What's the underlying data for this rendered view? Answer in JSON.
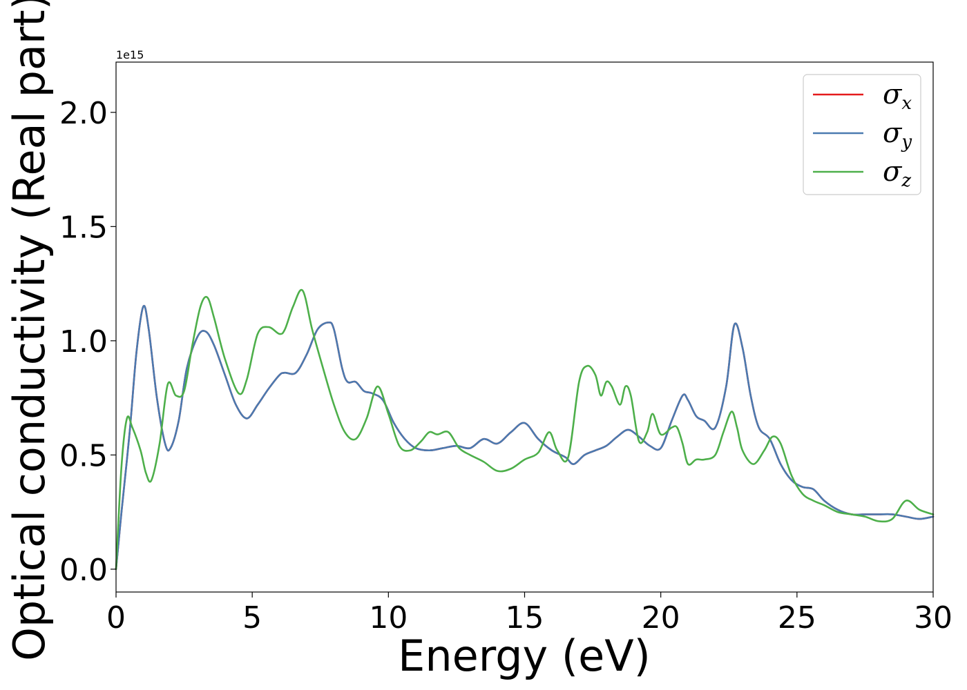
{
  "chart_data": {
    "type": "line",
    "title": "",
    "xlabel": "Energy (eV)",
    "ylabel": "Optical conductivity (Real part)",
    "y_offset_label": "1e15",
    "xlim": [
      0,
      30
    ],
    "ylim": [
      -0.1,
      2.22
    ],
    "xticks": [
      0,
      5,
      10,
      15,
      20,
      25,
      30
    ],
    "xtick_labels": [
      "0",
      "5",
      "10",
      "15",
      "20",
      "25",
      "30"
    ],
    "yticks": [
      0.0,
      0.5,
      1.0,
      1.5,
      2.0
    ],
    "ytick_labels": [
      "0.0",
      "0.5",
      "1.0",
      "1.5",
      "2.0"
    ],
    "grid": false,
    "legend_position": "top-right",
    "series": [
      {
        "name": "σx",
        "symbol": "σ",
        "subscript": "x",
        "color": "#e41a1c",
        "x": [
          0,
          0.2,
          0.5,
          0.75,
          1.0,
          1.2,
          1.5,
          1.8,
          2.0,
          2.3,
          2.6,
          3.0,
          3.3,
          3.6,
          4.0,
          4.4,
          4.8,
          5.2,
          5.6,
          6.0,
          6.2,
          6.6,
          7.0,
          7.4,
          7.8,
          8.0,
          8.3,
          8.5,
          8.8,
          9.1,
          9.4,
          9.8,
          10.2,
          10.6,
          11.0,
          11.5,
          12.0,
          12.5,
          13.0,
          13.5,
          14.0,
          14.5,
          15.0,
          15.5,
          16.0,
          16.5,
          16.8,
          17.2,
          17.6,
          18.0,
          18.4,
          18.8,
          19.2,
          19.6,
          20.0,
          20.4,
          20.8,
          21.0,
          21.3,
          21.6,
          22.0,
          22.4,
          22.7,
          23.0,
          23.3,
          23.6,
          24.0,
          24.4,
          24.8,
          25.2,
          25.6,
          26.0,
          26.5,
          27.0,
          27.5,
          28.0,
          28.5,
          29.0,
          29.5,
          30.0
        ],
        "y": [
          0.0,
          0.25,
          0.6,
          0.95,
          1.15,
          1.05,
          0.75,
          0.55,
          0.53,
          0.65,
          0.88,
          1.02,
          1.04,
          0.98,
          0.85,
          0.72,
          0.66,
          0.72,
          0.79,
          0.85,
          0.86,
          0.86,
          0.94,
          1.05,
          1.08,
          1.05,
          0.88,
          0.82,
          0.82,
          0.78,
          0.77,
          0.74,
          0.64,
          0.57,
          0.53,
          0.52,
          0.53,
          0.54,
          0.53,
          0.57,
          0.55,
          0.6,
          0.64,
          0.57,
          0.52,
          0.49,
          0.46,
          0.5,
          0.52,
          0.54,
          0.58,
          0.61,
          0.58,
          0.54,
          0.53,
          0.65,
          0.76,
          0.74,
          0.67,
          0.65,
          0.62,
          0.8,
          1.07,
          0.97,
          0.76,
          0.62,
          0.57,
          0.46,
          0.39,
          0.36,
          0.35,
          0.3,
          0.26,
          0.24,
          0.24,
          0.24,
          0.24,
          0.23,
          0.22,
          0.23
        ]
      },
      {
        "name": "σy",
        "symbol": "σ",
        "subscript": "y",
        "color": "#4a7ab0",
        "x": [
          0,
          0.2,
          0.5,
          0.75,
          1.0,
          1.2,
          1.5,
          1.8,
          2.0,
          2.3,
          2.6,
          3.0,
          3.3,
          3.6,
          4.0,
          4.4,
          4.8,
          5.2,
          5.6,
          6.0,
          6.2,
          6.6,
          7.0,
          7.4,
          7.8,
          8.0,
          8.3,
          8.5,
          8.8,
          9.1,
          9.4,
          9.8,
          10.2,
          10.6,
          11.0,
          11.5,
          12.0,
          12.5,
          13.0,
          13.5,
          14.0,
          14.5,
          15.0,
          15.5,
          16.0,
          16.5,
          16.8,
          17.2,
          17.6,
          18.0,
          18.4,
          18.8,
          19.2,
          19.6,
          20.0,
          20.4,
          20.8,
          21.0,
          21.3,
          21.6,
          22.0,
          22.4,
          22.7,
          23.0,
          23.3,
          23.6,
          24.0,
          24.4,
          24.8,
          25.2,
          25.6,
          26.0,
          26.5,
          27.0,
          27.5,
          28.0,
          28.5,
          29.0,
          29.5,
          30.0
        ],
        "y": [
          0.0,
          0.25,
          0.6,
          0.95,
          1.15,
          1.05,
          0.75,
          0.55,
          0.53,
          0.65,
          0.88,
          1.02,
          1.04,
          0.98,
          0.85,
          0.72,
          0.66,
          0.72,
          0.79,
          0.85,
          0.86,
          0.86,
          0.94,
          1.05,
          1.08,
          1.05,
          0.88,
          0.82,
          0.82,
          0.78,
          0.77,
          0.74,
          0.64,
          0.57,
          0.53,
          0.52,
          0.53,
          0.54,
          0.53,
          0.57,
          0.55,
          0.6,
          0.64,
          0.57,
          0.52,
          0.49,
          0.46,
          0.5,
          0.52,
          0.54,
          0.58,
          0.61,
          0.58,
          0.54,
          0.53,
          0.65,
          0.76,
          0.74,
          0.67,
          0.65,
          0.62,
          0.8,
          1.07,
          0.97,
          0.76,
          0.62,
          0.57,
          0.46,
          0.39,
          0.36,
          0.35,
          0.3,
          0.26,
          0.24,
          0.24,
          0.24,
          0.24,
          0.23,
          0.22,
          0.23
        ]
      },
      {
        "name": "σz",
        "symbol": "σ",
        "subscript": "z",
        "color": "#4daf4a",
        "x": [
          0,
          0.2,
          0.4,
          0.6,
          0.9,
          1.1,
          1.3,
          1.6,
          1.9,
          2.2,
          2.5,
          2.8,
          3.1,
          3.35,
          3.6,
          4.0,
          4.5,
          4.8,
          5.2,
          5.6,
          6.0,
          6.2,
          6.5,
          6.85,
          7.2,
          7.6,
          8.0,
          8.4,
          8.8,
          9.2,
          9.6,
          10.0,
          10.4,
          10.8,
          11.2,
          11.5,
          11.8,
          12.2,
          12.6,
          13.0,
          13.5,
          14.0,
          14.5,
          15.0,
          15.5,
          15.9,
          16.2,
          16.6,
          17.0,
          17.3,
          17.6,
          17.8,
          18.0,
          18.2,
          18.5,
          18.7,
          18.9,
          19.2,
          19.5,
          19.7,
          20.0,
          20.4,
          20.6,
          20.8,
          21.0,
          21.3,
          21.6,
          22.0,
          22.3,
          22.6,
          22.8,
          23.0,
          23.4,
          23.8,
          24.1,
          24.4,
          24.8,
          25.2,
          25.6,
          26.0,
          26.5,
          27.0,
          27.5,
          28.0,
          28.5,
          29.0,
          29.5,
          30.0
        ],
        "y": [
          0.0,
          0.45,
          0.66,
          0.62,
          0.52,
          0.42,
          0.39,
          0.55,
          0.81,
          0.76,
          0.78,
          0.98,
          1.15,
          1.19,
          1.1,
          0.92,
          0.77,
          0.83,
          1.03,
          1.06,
          1.03,
          1.05,
          1.15,
          1.22,
          1.05,
          0.88,
          0.72,
          0.6,
          0.57,
          0.66,
          0.8,
          0.68,
          0.54,
          0.52,
          0.56,
          0.6,
          0.59,
          0.6,
          0.53,
          0.5,
          0.47,
          0.43,
          0.44,
          0.48,
          0.51,
          0.6,
          0.52,
          0.49,
          0.82,
          0.89,
          0.85,
          0.76,
          0.82,
          0.8,
          0.72,
          0.8,
          0.76,
          0.56,
          0.6,
          0.68,
          0.59,
          0.62,
          0.62,
          0.55,
          0.46,
          0.48,
          0.48,
          0.5,
          0.6,
          0.69,
          0.62,
          0.52,
          0.46,
          0.52,
          0.58,
          0.55,
          0.41,
          0.33,
          0.3,
          0.28,
          0.25,
          0.24,
          0.23,
          0.21,
          0.22,
          0.3,
          0.26,
          0.24
        ]
      }
    ]
  }
}
